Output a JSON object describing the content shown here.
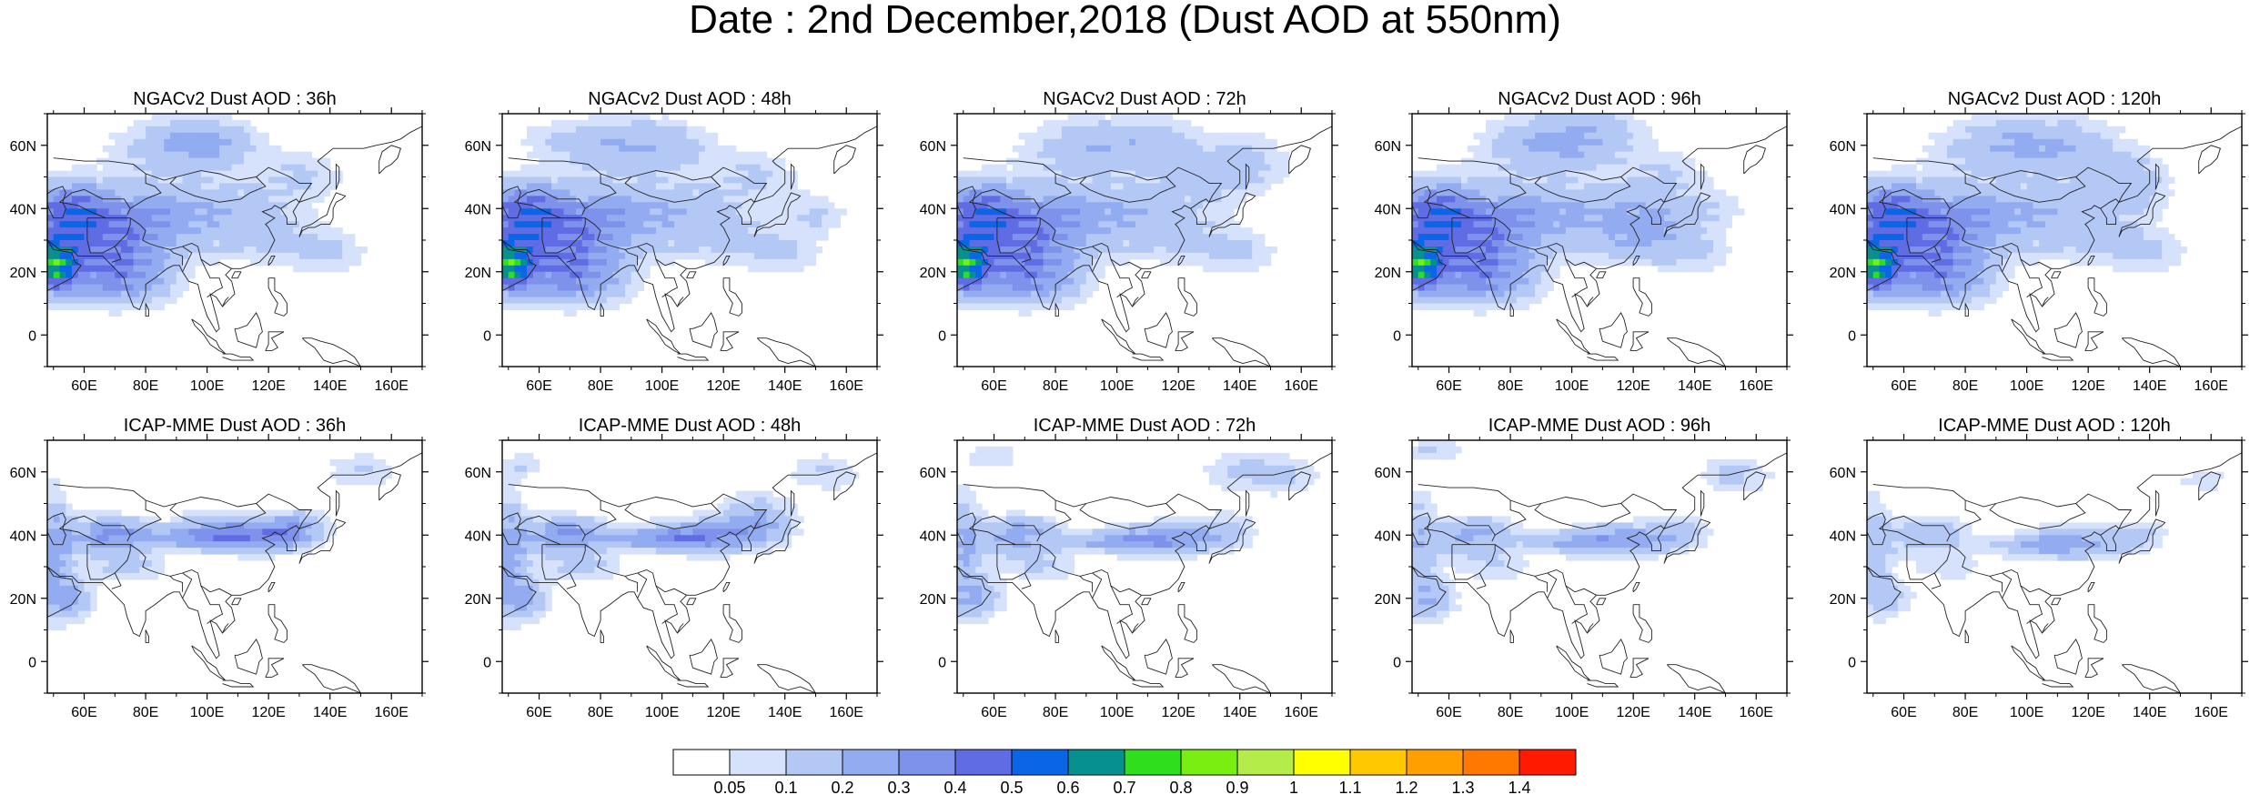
{
  "title": "Date : 2nd December,2018 (Dust AOD at 550nm)",
  "panels": [
    {
      "title": "NGACv2 Dust AOD : 36h",
      "model": "ngac"
    },
    {
      "title": "NGACv2 Dust AOD : 48h",
      "model": "ngac"
    },
    {
      "title": "NGACv2 Dust AOD : 72h",
      "model": "ngac"
    },
    {
      "title": "NGACv2 Dust AOD : 96h",
      "model": "ngac"
    },
    {
      "title": "NGACv2 Dust AOD : 120h",
      "model": "ngac"
    },
    {
      "title": "ICAP-MME Dust AOD : 36h",
      "model": "icap"
    },
    {
      "title": "ICAP-MME Dust AOD : 48h",
      "model": "icap"
    },
    {
      "title": "ICAP-MME Dust AOD : 72h",
      "model": "icap"
    },
    {
      "title": "ICAP-MME Dust AOD : 96h",
      "model": "icap"
    },
    {
      "title": "ICAP-MME Dust AOD : 120h",
      "model": "icap"
    }
  ],
  "map_extent": {
    "lon": [
      48,
      170
    ],
    "lat": [
      -10,
      70
    ]
  },
  "lon_ticks": [
    {
      "value": 60,
      "label": "60E"
    },
    {
      "value": 80,
      "label": "80E"
    },
    {
      "value": 100,
      "label": "100E"
    },
    {
      "value": 120,
      "label": "120E"
    },
    {
      "value": 140,
      "label": "140E"
    },
    {
      "value": 160,
      "label": "160E"
    }
  ],
  "lat_ticks": [
    {
      "value": 60,
      "label": "60N"
    },
    {
      "value": 40,
      "label": "40N"
    },
    {
      "value": 20,
      "label": "20N"
    },
    {
      "value": 0,
      "label": "0"
    }
  ],
  "colorbar": {
    "colors": [
      "#ffffff",
      "#d6e2fb",
      "#b4c8f6",
      "#93acf1",
      "#7e92ec",
      "#5f6ce4",
      "#0a66e6",
      "#06908f",
      "#30df1c",
      "#78ef10",
      "#b4ed4a",
      "#ffff00",
      "#ffc800",
      "#ffa000",
      "#ff7800",
      "#ff1a00"
    ],
    "labels": [
      "0.05",
      "0.1",
      "0.2",
      "0.3",
      "0.4",
      "0.5",
      "0.6",
      "0.7",
      "0.8",
      "0.9",
      "1",
      "1.1",
      "1.2",
      "1.3",
      "1.4"
    ]
  }
}
